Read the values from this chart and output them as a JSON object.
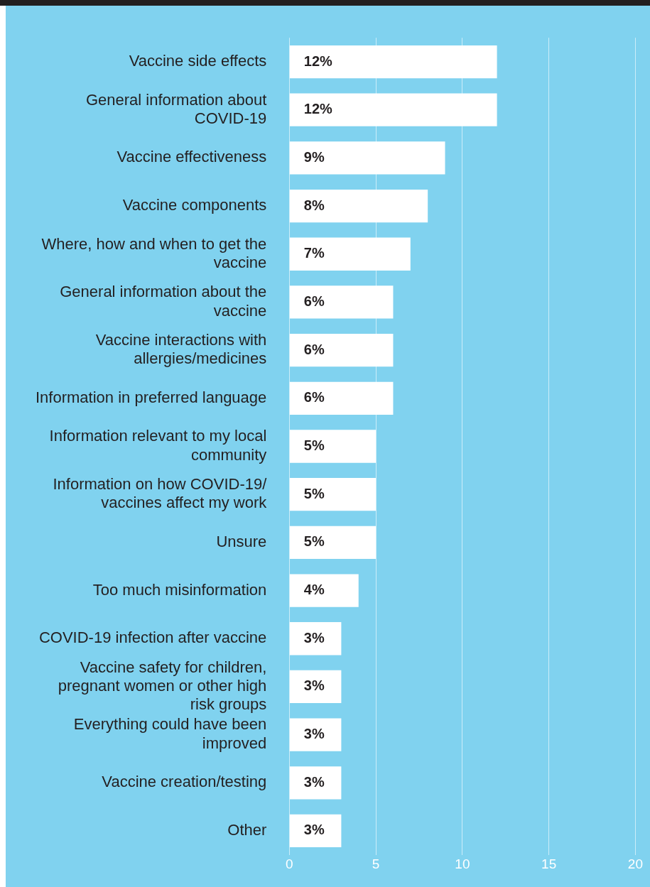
{
  "chart_data": {
    "type": "bar",
    "orientation": "horizontal",
    "categories": [
      "Vaccine side effects",
      "General information about COVID-19",
      "Vaccine effectiveness",
      "Vaccine components",
      "Where, how and when to get the vaccine",
      "General information about the vaccine",
      "Vaccine interactions with allergies/medicines",
      "Information in preferred language",
      "Information relevant to my local community",
      "Information on how COVID-19/ vaccines affect my work",
      "Unsure",
      "Too much misinformation",
      "COVID-19 infection after vaccine",
      "Vaccine safety for children, pregnant women or other high risk groups",
      "Everything could have been improved",
      "Vaccine creation/testing",
      "Other"
    ],
    "values": [
      12,
      12,
      9,
      8,
      7,
      6,
      6,
      6,
      5,
      5,
      5,
      4,
      3,
      3,
      3,
      3,
      3
    ],
    "value_labels": [
      "12%",
      "12%",
      "9%",
      "8%",
      "7%",
      "6%",
      "6%",
      "6%",
      "5%",
      "5%",
      "5%",
      "4%",
      "3%",
      "3%",
      "3%",
      "3%",
      "3%"
    ],
    "color": "#ffffff",
    "xlim": [
      0,
      20
    ],
    "xticks": [
      0,
      5,
      10,
      15,
      20
    ],
    "grid": "x",
    "legend": false
  }
}
